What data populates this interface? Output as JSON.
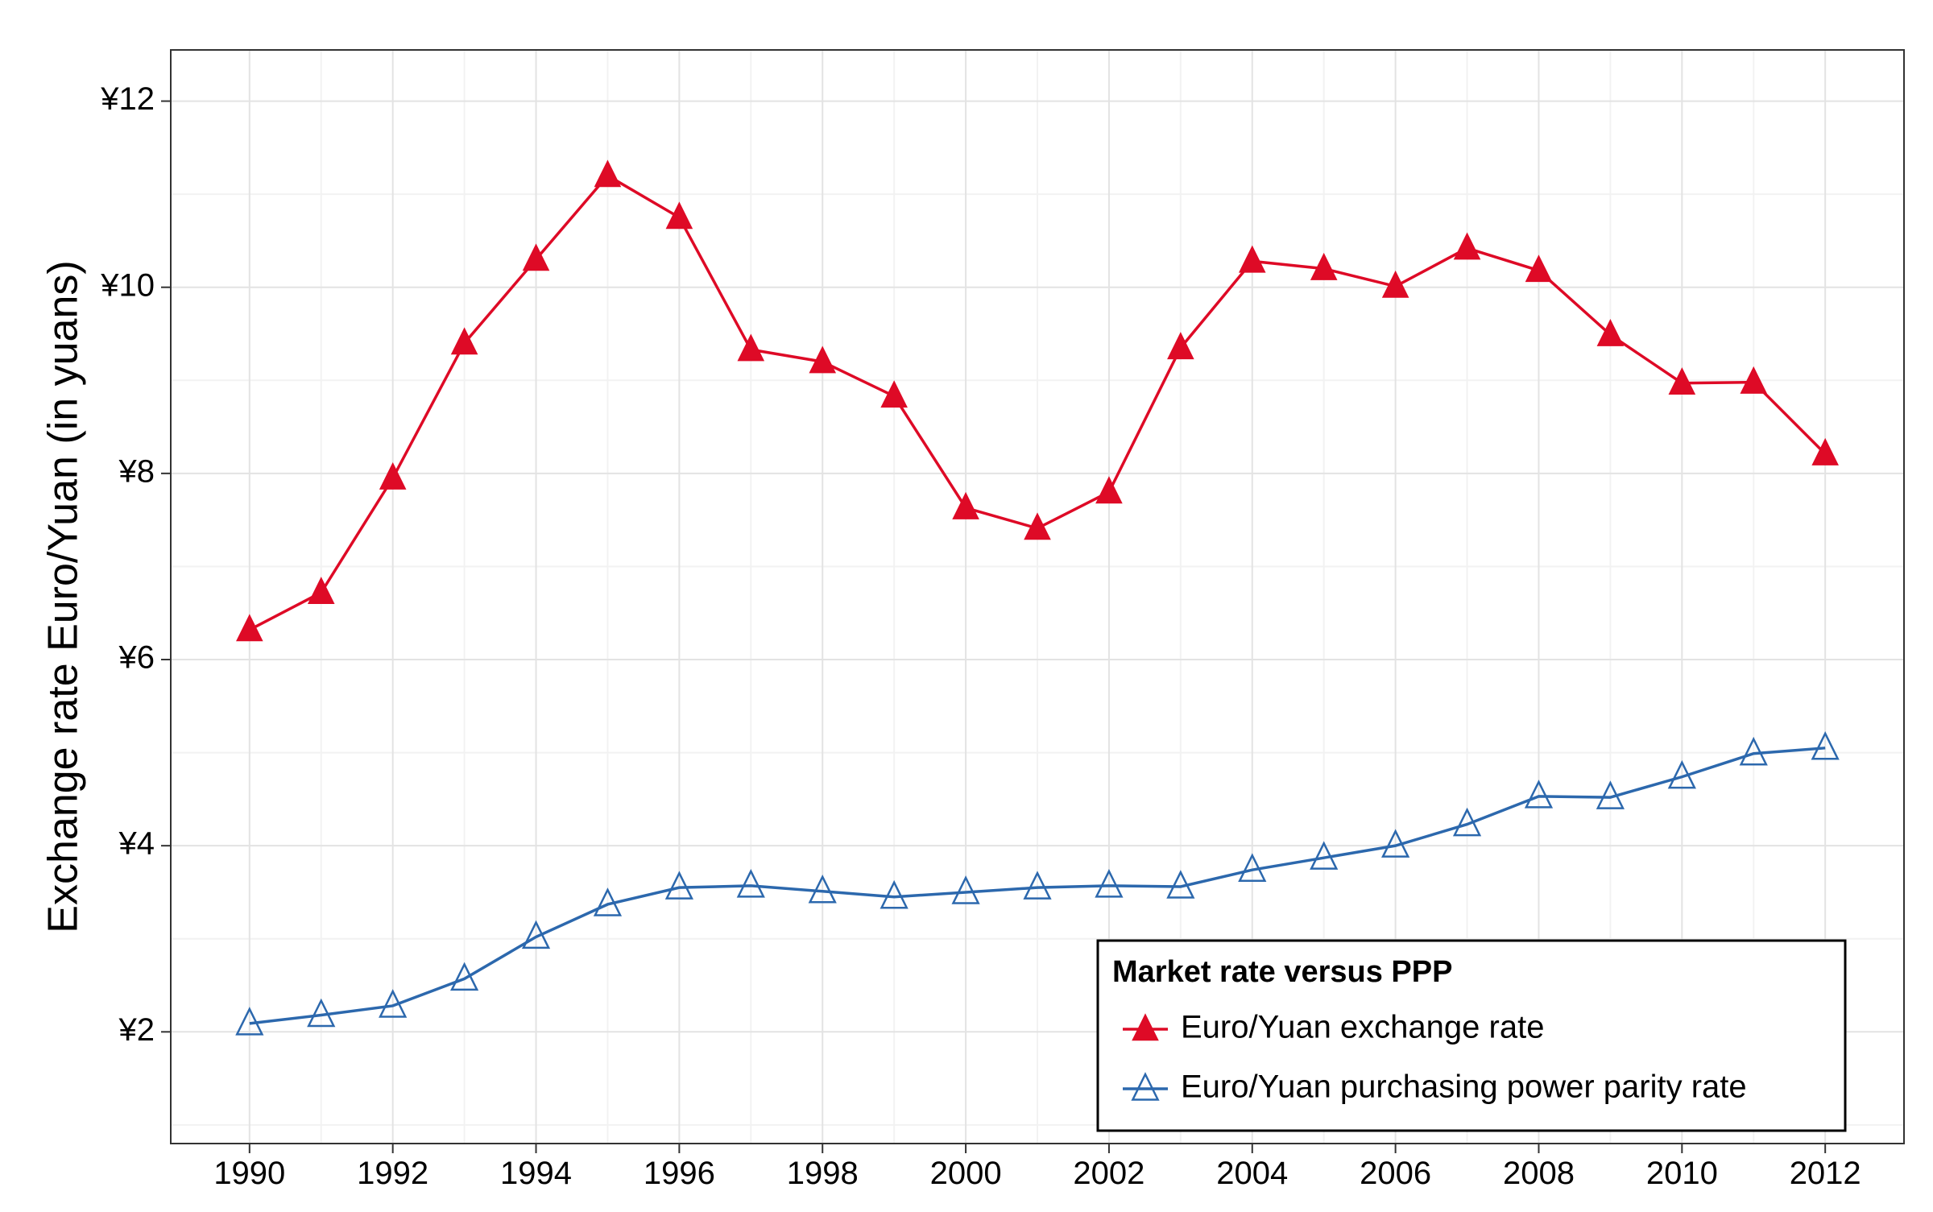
{
  "chart_data": {
    "type": "line",
    "title": "",
    "xlabel": "",
    "ylabel": "Exchange rate Euro/Yuan (in yuans)",
    "x": [
      1990,
      1991,
      1992,
      1993,
      1994,
      1995,
      1996,
      1997,
      1998,
      1999,
      2000,
      2001,
      2002,
      2003,
      2004,
      2005,
      2006,
      2007,
      2008,
      2009,
      2010,
      2011,
      2012
    ],
    "xlim": [
      1988.9,
      2013.1
    ],
    "ylim": [
      0.8,
      12.55
    ],
    "xticks": [
      1990,
      1992,
      1994,
      1996,
      1998,
      2000,
      2002,
      2004,
      2006,
      2008,
      2010,
      2012
    ],
    "xtick_labels": [
      "1990",
      "1992",
      "1994",
      "1996",
      "1998",
      "2000",
      "2002",
      "2004",
      "2006",
      "2008",
      "2010",
      "2012"
    ],
    "yticks": [
      2,
      4,
      6,
      8,
      10,
      12
    ],
    "ytick_labels": [
      "¥2",
      "¥4",
      "¥6",
      "¥8",
      "¥10",
      "¥12"
    ],
    "grid": true,
    "legend_position": "bottom-right",
    "legend_title": "Market rate versus PPP",
    "series": [
      {
        "name": "Euro/Yuan exchange rate",
        "color": "#de0a26",
        "marker": "filled-triangle",
        "values": [
          6.32,
          6.72,
          7.95,
          9.4,
          10.3,
          11.2,
          10.75,
          9.33,
          9.2,
          8.83,
          7.63,
          7.41,
          7.8,
          9.35,
          10.28,
          10.2,
          10.01,
          10.42,
          10.18,
          9.49,
          8.97,
          8.98,
          8.21
        ]
      },
      {
        "name": "Euro/Yuan purchasing power parity rate",
        "color": "#2c68ad",
        "marker": "open-triangle",
        "values": [
          2.09,
          2.18,
          2.28,
          2.57,
          3.02,
          3.37,
          3.55,
          3.57,
          3.51,
          3.45,
          3.5,
          3.55,
          3.57,
          3.56,
          3.74,
          3.87,
          4.0,
          4.23,
          4.53,
          4.52,
          4.74,
          4.99,
          5.05
        ]
      }
    ]
  }
}
